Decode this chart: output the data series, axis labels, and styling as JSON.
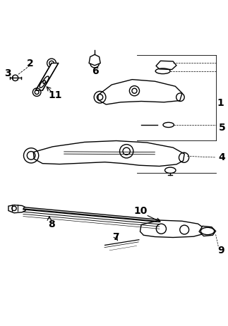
{
  "title": "",
  "bg_color": "#ffffff",
  "fig_width": 3.23,
  "fig_height": 4.62,
  "dpi": 100,
  "line_color": "#000000",
  "lw": 1.0,
  "label_specs": {
    "2": [
      0.13,
      0.937,
      10
    ],
    "3": [
      0.033,
      0.895,
      10
    ],
    "11": [
      0.24,
      0.8,
      10
    ],
    "6": [
      0.418,
      0.905,
      10
    ],
    "1": [
      0.97,
      0.765,
      10
    ],
    "5": [
      0.975,
      0.655,
      10
    ],
    "4": [
      0.975,
      0.525,
      10
    ],
    "8": [
      0.225,
      0.228,
      10
    ],
    "7": [
      0.507,
      0.172,
      10
    ],
    "9": [
      0.972,
      0.113,
      10
    ],
    "10": [
      0.618,
      0.29,
      10
    ]
  }
}
